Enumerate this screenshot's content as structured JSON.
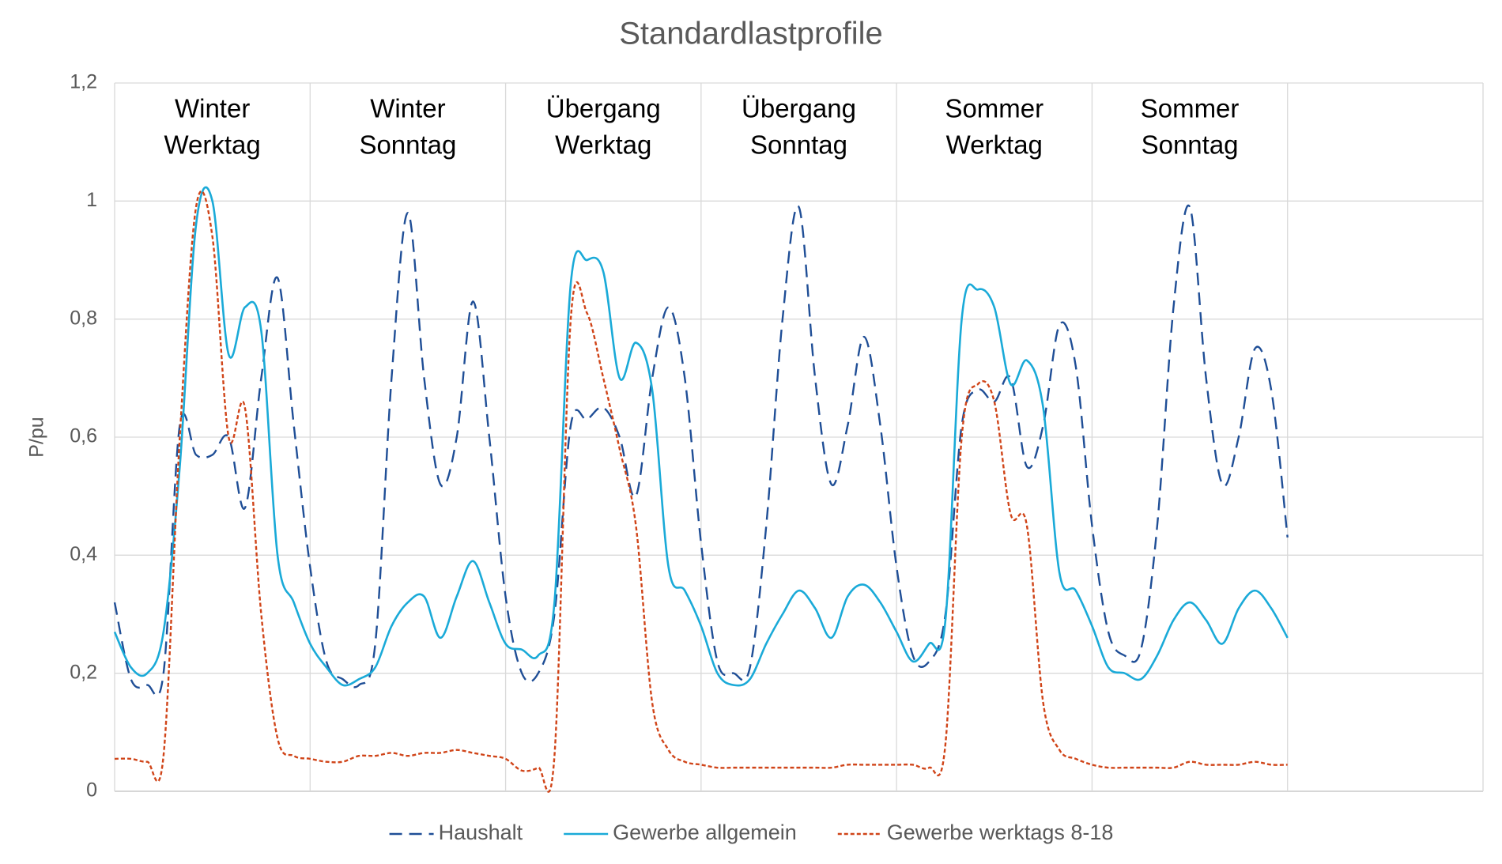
{
  "chart_data": {
    "type": "line",
    "title": "Standardlastprofile",
    "y_label": "P/pu",
    "annotations": [
      [
        "Winter",
        "Werktag"
      ],
      [
        "Winter",
        "Sonntag"
      ],
      [
        "Übergang",
        "Werktag"
      ],
      [
        "Übergang",
        "Sonntag"
      ],
      [
        "Sommer",
        "Werktag"
      ],
      [
        "Sommer",
        "Sonntag"
      ]
    ],
    "x": [
      0,
      2,
      4,
      6,
      8,
      10,
      12,
      14,
      16,
      18,
      20,
      22,
      24,
      26,
      28,
      30,
      32,
      34,
      36,
      38,
      40,
      42,
      44,
      46,
      48,
      50,
      52,
      54,
      56,
      58,
      60,
      62,
      64,
      66,
      68,
      70,
      72,
      74,
      76,
      78,
      80,
      82,
      84,
      86,
      88,
      90,
      92,
      94,
      96,
      98,
      100,
      102,
      104,
      106,
      108,
      110,
      112,
      114,
      116,
      118,
      120,
      122,
      124,
      126,
      128,
      130,
      132,
      134,
      136,
      138,
      140,
      142,
      144
    ],
    "xlim": [
      0,
      168
    ],
    "xticks": [
      0,
      24,
      48,
      72,
      96,
      120,
      144,
      168
    ],
    "ylim": [
      0,
      1.2
    ],
    "yticks": [
      0,
      {
        "value": 0.2,
        "label": "0,2"
      },
      {
        "value": 0.4,
        "label": "0,4"
      },
      {
        "value": 0.6,
        "label": "0,6"
      },
      {
        "value": 0.8,
        "label": "0,8"
      },
      1,
      {
        "value": 1.2,
        "label": "1,2"
      }
    ],
    "grid": true,
    "legend": "bottom",
    "series": [
      {
        "name": "Haushalt",
        "color": "#1f4e96",
        "style": "dashed",
        "values": [
          0.32,
          0.19,
          0.18,
          0.2,
          0.62,
          0.57,
          0.57,
          0.6,
          0.48,
          0.7,
          0.87,
          0.62,
          0.38,
          0.22,
          0.19,
          0.18,
          0.25,
          0.7,
          0.98,
          0.7,
          0.52,
          0.6,
          0.83,
          0.6,
          0.33,
          0.2,
          0.2,
          0.3,
          0.62,
          0.63,
          0.65,
          0.6,
          0.5,
          0.7,
          0.82,
          0.7,
          0.42,
          0.22,
          0.2,
          0.21,
          0.45,
          0.8,
          0.99,
          0.7,
          0.52,
          0.62,
          0.77,
          0.62,
          0.38,
          0.23,
          0.22,
          0.3,
          0.62,
          0.68,
          0.66,
          0.7,
          0.55,
          0.62,
          0.79,
          0.72,
          0.45,
          0.27,
          0.23,
          0.24,
          0.45,
          0.82,
          0.99,
          0.7,
          0.52,
          0.6,
          0.75,
          0.68,
          0.43
        ]
      },
      {
        "name": "Gewerbe allgemein",
        "color": "#1aaad8",
        "style": "solid",
        "values": [
          0.27,
          0.21,
          0.2,
          0.27,
          0.55,
          0.96,
          1.0,
          0.74,
          0.82,
          0.78,
          0.4,
          0.32,
          0.25,
          0.21,
          0.18,
          0.19,
          0.21,
          0.28,
          0.32,
          0.33,
          0.26,
          0.33,
          0.39,
          0.32,
          0.25,
          0.24,
          0.23,
          0.32,
          0.86,
          0.9,
          0.88,
          0.7,
          0.76,
          0.68,
          0.38,
          0.34,
          0.28,
          0.2,
          0.18,
          0.19,
          0.25,
          0.3,
          0.34,
          0.31,
          0.26,
          0.33,
          0.35,
          0.32,
          0.27,
          0.22,
          0.25,
          0.29,
          0.8,
          0.85,
          0.82,
          0.69,
          0.73,
          0.65,
          0.37,
          0.34,
          0.28,
          0.21,
          0.2,
          0.19,
          0.23,
          0.29,
          0.32,
          0.29,
          0.25,
          0.31,
          0.34,
          0.31,
          0.26
        ]
      },
      {
        "name": "Gewerbe werktags 8-18",
        "color": "#d04418",
        "style": "dotted",
        "values": [
          0.055,
          0.055,
          0.05,
          0.06,
          0.6,
          0.99,
          0.94,
          0.6,
          0.65,
          0.3,
          0.09,
          0.06,
          0.055,
          0.05,
          0.05,
          0.06,
          0.06,
          0.065,
          0.06,
          0.065,
          0.065,
          0.07,
          0.065,
          0.06,
          0.055,
          0.035,
          0.04,
          0.06,
          0.8,
          0.81,
          0.7,
          0.58,
          0.45,
          0.15,
          0.07,
          0.05,
          0.045,
          0.04,
          0.04,
          0.04,
          0.04,
          0.04,
          0.04,
          0.04,
          0.04,
          0.045,
          0.045,
          0.045,
          0.045,
          0.045,
          0.04,
          0.08,
          0.6,
          0.69,
          0.66,
          0.47,
          0.45,
          0.15,
          0.07,
          0.055,
          0.045,
          0.04,
          0.04,
          0.04,
          0.04,
          0.04,
          0.05,
          0.045,
          0.045,
          0.045,
          0.05,
          0.045,
          0.045
        ]
      }
    ]
  }
}
